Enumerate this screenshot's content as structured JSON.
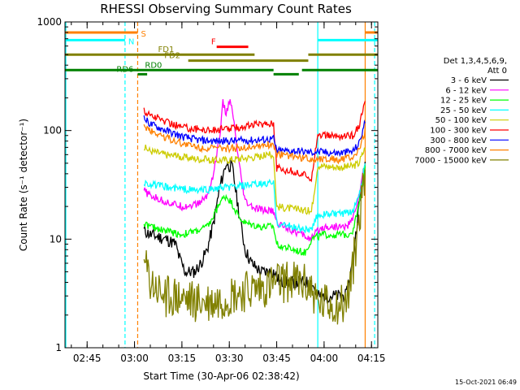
{
  "footer": {
    "stamp": "15-Oct-2021 06:49"
  },
  "chart_data": {
    "type": "line",
    "title": "RHESSI Observing Summary Count Rates",
    "xlabel": "Start Time (30-Apr-06 02:38:42)",
    "ylabel": "Count Rate (s⁻¹ detector⁻¹)",
    "y_scale": "log",
    "xlim": [
      "02:38",
      "04:17"
    ],
    "ylim": [
      1,
      1000
    ],
    "x_ticks": [
      "02:45",
      "03:00",
      "03:15",
      "03:30",
      "03:45",
      "04:00",
      "04:15"
    ],
    "y_ticks": [
      "1",
      "10",
      "100",
      "1000"
    ],
    "grid": false,
    "legend_position": "right",
    "legend_header": [
      "Det 1,3,4,5,6,9,",
      "Att 0"
    ],
    "series": [
      {
        "name": "3 - 6 keV",
        "color": "#000000",
        "points": [
          [
            "03:03",
            12
          ],
          [
            "03:05",
            11
          ],
          [
            "03:10",
            10
          ],
          [
            "03:13",
            9
          ],
          [
            "03:14",
            7
          ],
          [
            "03:16",
            5
          ],
          [
            "03:19",
            5
          ],
          [
            "03:21",
            6
          ],
          [
            "03:23",
            8
          ],
          [
            "03:25",
            14
          ],
          [
            "03:27",
            30
          ],
          [
            "03:29",
            50
          ],
          [
            "03:31",
            45
          ],
          [
            "03:33",
            18
          ],
          [
            "03:35",
            8
          ],
          [
            "03:37",
            6
          ],
          [
            "03:40",
            5
          ],
          [
            "03:44",
            5
          ],
          [
            "03:46",
            4
          ],
          [
            "03:50",
            4
          ],
          [
            "03:53",
            4
          ],
          [
            "03:56",
            4
          ],
          [
            "03:58",
            3
          ],
          [
            "04:00",
            3
          ],
          [
            "04:07",
            3
          ],
          [
            "04:09",
            6
          ],
          [
            "04:11",
            20
          ],
          [
            "04:13",
            50
          ]
        ]
      },
      {
        "name": "6 - 12 keV",
        "color": "#ff00ff",
        "points": [
          [
            "03:03",
            28
          ],
          [
            "03:05",
            25
          ],
          [
            "03:10",
            22
          ],
          [
            "03:15",
            20
          ],
          [
            "03:20",
            21
          ],
          [
            "03:23",
            25
          ],
          [
            "03:25",
            40
          ],
          [
            "03:27",
            90
          ],
          [
            "03:28",
            180
          ],
          [
            "03:29",
            140
          ],
          [
            "03:30",
            190
          ],
          [
            "03:31",
            150
          ],
          [
            "03:33",
            50
          ],
          [
            "03:35",
            22
          ],
          [
            "03:38",
            19
          ],
          [
            "03:44",
            18
          ],
          [
            "03:45",
            14
          ],
          [
            "03:48",
            13
          ],
          [
            "03:50",
            12
          ],
          [
            "03:53",
            11
          ],
          [
            "03:56",
            10
          ],
          [
            "03:58",
            12
          ],
          [
            "04:00",
            13
          ],
          [
            "04:07",
            13
          ],
          [
            "04:09",
            15
          ],
          [
            "04:11",
            25
          ],
          [
            "04:13",
            50
          ]
        ]
      },
      {
        "name": "12 - 25 keV",
        "color": "#00ff00",
        "points": [
          [
            "03:03",
            14
          ],
          [
            "03:05",
            13
          ],
          [
            "03:10",
            12
          ],
          [
            "03:15",
            11
          ],
          [
            "03:20",
            12
          ],
          [
            "03:23",
            13
          ],
          [
            "03:25",
            16
          ],
          [
            "03:27",
            22
          ],
          [
            "03:29",
            25
          ],
          [
            "03:31",
            21
          ],
          [
            "03:33",
            16
          ],
          [
            "03:35",
            14
          ],
          [
            "03:40",
            13
          ],
          [
            "03:44",
            13
          ],
          [
            "03:45",
            9
          ],
          [
            "03:50",
            8
          ],
          [
            "03:54",
            7.5
          ],
          [
            "03:56",
            10
          ],
          [
            "04:00",
            11
          ],
          [
            "04:07",
            11
          ],
          [
            "04:09",
            12
          ],
          [
            "04:11",
            20
          ],
          [
            "04:13",
            45
          ]
        ]
      },
      {
        "name": "25 - 50 keV",
        "color": "#00ffff",
        "points": [
          [
            "03:03",
            33
          ],
          [
            "03:05",
            32
          ],
          [
            "03:10",
            30
          ],
          [
            "03:15",
            29
          ],
          [
            "03:20",
            28
          ],
          [
            "03:25",
            29
          ],
          [
            "03:30",
            30
          ],
          [
            "03:35",
            31
          ],
          [
            "03:40",
            32
          ],
          [
            "03:44",
            33
          ],
          [
            "03:45",
            14
          ],
          [
            "03:50",
            13
          ],
          [
            "03:56",
            12
          ],
          [
            "03:58",
            17
          ],
          [
            "04:00",
            17
          ],
          [
            "04:07",
            17
          ],
          [
            "04:09",
            18
          ],
          [
            "04:11",
            25
          ],
          [
            "04:13",
            50
          ]
        ]
      },
      {
        "name": "50 - 100 keV",
        "color": "#cccc00",
        "points": [
          [
            "03:03",
            70
          ],
          [
            "03:05",
            65
          ],
          [
            "03:10",
            60
          ],
          [
            "03:15",
            57
          ],
          [
            "03:20",
            55
          ],
          [
            "03:25",
            53
          ],
          [
            "03:30",
            54
          ],
          [
            "03:35",
            56
          ],
          [
            "03:40",
            58
          ],
          [
            "03:44",
            60
          ],
          [
            "03:45",
            20
          ],
          [
            "03:50",
            19
          ],
          [
            "03:56",
            18
          ],
          [
            "03:58",
            48
          ],
          [
            "04:00",
            47
          ],
          [
            "04:05",
            46
          ],
          [
            "04:09",
            47
          ],
          [
            "04:11",
            50
          ],
          [
            "04:13",
            70
          ]
        ]
      },
      {
        "name": "100 - 300 keV",
        "color": "#ff0000",
        "points": [
          [
            "03:03",
            150
          ],
          [
            "03:05",
            140
          ],
          [
            "03:10",
            120
          ],
          [
            "03:15",
            108
          ],
          [
            "03:20",
            103
          ],
          [
            "03:25",
            101
          ],
          [
            "03:30",
            104
          ],
          [
            "03:35",
            110
          ],
          [
            "03:40",
            115
          ],
          [
            "03:44",
            118
          ],
          [
            "03:45",
            45
          ],
          [
            "03:50",
            42
          ],
          [
            "03:56",
            37
          ],
          [
            "03:58",
            92
          ],
          [
            "04:00",
            90
          ],
          [
            "04:05",
            88
          ],
          [
            "04:09",
            90
          ],
          [
            "04:11",
            110
          ],
          [
            "04:13",
            180
          ]
        ]
      },
      {
        "name": "300 - 800 keV",
        "color": "#0000ff",
        "points": [
          [
            "03:03",
            130
          ],
          [
            "03:05",
            115
          ],
          [
            "03:10",
            100
          ],
          [
            "03:15",
            88
          ],
          [
            "03:20",
            82
          ],
          [
            "03:25",
            80
          ],
          [
            "03:30",
            80
          ],
          [
            "03:35",
            81
          ],
          [
            "03:40",
            82
          ],
          [
            "03:44",
            84
          ],
          [
            "03:45",
            65
          ],
          [
            "03:50",
            65
          ],
          [
            "03:56",
            63
          ],
          [
            "03:58",
            64
          ],
          [
            "04:00",
            63
          ],
          [
            "04:05",
            62
          ],
          [
            "04:09",
            64
          ],
          [
            "04:11",
            75
          ],
          [
            "04:13",
            120
          ]
        ]
      },
      {
        "name": "800 - 7000 keV",
        "color": "#ff8000",
        "points": [
          [
            "03:03",
            110
          ],
          [
            "03:05",
            100
          ],
          [
            "03:10",
            86
          ],
          [
            "03:15",
            76
          ],
          [
            "03:20",
            70
          ],
          [
            "03:25",
            68
          ],
          [
            "03:30",
            68
          ],
          [
            "03:35",
            70
          ],
          [
            "03:40",
            73
          ],
          [
            "03:44",
            75
          ],
          [
            "03:45",
            60
          ],
          [
            "03:50",
            58
          ],
          [
            "03:56",
            54
          ],
          [
            "03:58",
            55
          ],
          [
            "04:00",
            55
          ],
          [
            "04:05",
            54
          ],
          [
            "04:09",
            56
          ],
          [
            "04:11",
            65
          ],
          [
            "04:13",
            100
          ]
        ]
      },
      {
        "name": "7000 - 15000 keV",
        "color": "#808000",
        "points": [
          [
            "03:03",
            6
          ],
          [
            "03:05",
            4
          ],
          [
            "03:08",
            3.2
          ],
          [
            "03:10",
            3
          ],
          [
            "03:15",
            2.8
          ],
          [
            "03:20",
            2.6
          ],
          [
            "03:25",
            2.6
          ],
          [
            "03:30",
            3
          ],
          [
            "03:35",
            3.3
          ],
          [
            "03:40",
            3.5
          ],
          [
            "03:44",
            3.8
          ],
          [
            "03:46",
            4
          ],
          [
            "03:52",
            4
          ],
          [
            "03:56",
            3.5
          ],
          [
            "03:58",
            2.5
          ],
          [
            "04:00",
            2.5
          ],
          [
            "04:07",
            2.5
          ],
          [
            "04:09",
            5
          ],
          [
            "04:11",
            15
          ],
          [
            "04:13",
            40
          ]
        ]
      }
    ],
    "state_bars": [
      {
        "label": "S",
        "color": "#ff8000",
        "y": 800,
        "segments": [
          [
            "02:38",
            "03:01"
          ],
          [
            "04:13",
            "04:17"
          ]
        ]
      },
      {
        "label": "N",
        "color": "#00ffff",
        "y": 680,
        "segments": [
          [
            "02:38",
            "02:57"
          ],
          [
            "03:58",
            "04:17"
          ]
        ]
      },
      {
        "label": "F",
        "color": "#ff0000",
        "y": 590,
        "segments": [
          [
            "03:26",
            "03:36"
          ]
        ]
      },
      {
        "label": "FD1",
        "color": "#808000",
        "y": 500,
        "segments": [
          [
            "02:38",
            "03:38"
          ],
          [
            "03:55",
            "04:17"
          ]
        ]
      },
      {
        "label": "FD2",
        "color": "#808000",
        "y": 440,
        "segments": [
          [
            "03:17",
            "03:55"
          ]
        ]
      },
      {
        "label": "RD0",
        "color": "#008000",
        "y": 360,
        "segments": [
          [
            "02:38",
            "03:44"
          ],
          [
            "03:53",
            "04:17"
          ]
        ]
      },
      {
        "label": "RD6",
        "color": "#008000",
        "y": 330,
        "segments": [
          [
            "03:01",
            "03:04"
          ],
          [
            "03:44",
            "03:52"
          ]
        ]
      }
    ],
    "vertical_markers": [
      {
        "time": "02:38",
        "color": "#00ffff",
        "style": "solid"
      },
      {
        "time": "02:57",
        "color": "#00ffff",
        "style": "dashed"
      },
      {
        "time": "03:01",
        "color": "#ff8000",
        "style": "dashed"
      },
      {
        "time": "03:58",
        "color": "#00ffff",
        "style": "solid"
      },
      {
        "time": "04:13",
        "color": "#ff8000",
        "style": "solid"
      },
      {
        "time": "04:16",
        "color": "#00ffff",
        "style": "dashed"
      }
    ]
  }
}
